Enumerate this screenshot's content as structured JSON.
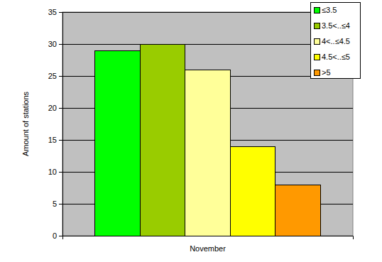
{
  "chart_data": {
    "type": "bar",
    "y_label": "Amount of stations",
    "categories": [
      "November"
    ],
    "series": [
      {
        "name": "≤3.5",
        "color": "#00ff00",
        "values": [
          29
        ]
      },
      {
        "name": "3.5<..≤4",
        "color": "#99cc00",
        "values": [
          30
        ]
      },
      {
        "name": "4<..≤4.5",
        "color": "#ffff99",
        "values": [
          26
        ]
      },
      {
        "name": "4.5<..≤5",
        "color": "#ffff00",
        "values": [
          14
        ]
      },
      {
        "name": ">5",
        "color": "#ff9900",
        "values": [
          8
        ]
      }
    ],
    "ylim": [
      0,
      35
    ],
    "yticks": [
      0,
      5,
      10,
      15,
      20,
      25,
      30,
      35
    ],
    "grid": true,
    "legend": "upper right"
  }
}
